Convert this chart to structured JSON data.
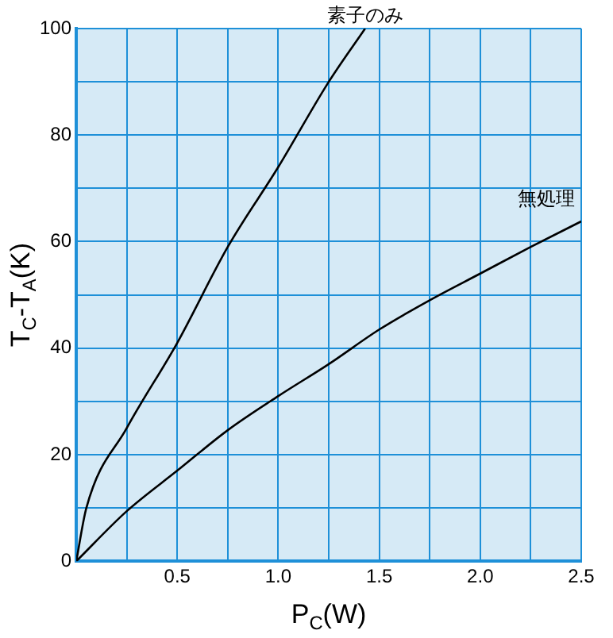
{
  "chart_data": {
    "type": "line",
    "xlabel": "P$_{C}$(W)",
    "ylabel": "T$_{C}$-T$_{A}$(K)",
    "xlim": [
      0,
      2.5
    ],
    "ylim": [
      0,
      100
    ],
    "xticks": [
      {
        "value": 0,
        "label": null
      },
      {
        "value": 0.25,
        "label": null
      },
      0.5,
      {
        "value": 0.75,
        "label": null
      },
      {
        "value": 1,
        "label": "1.0"
      },
      {
        "value": 1.25,
        "label": null
      },
      1.5,
      {
        "value": 1.75,
        "label": null
      },
      {
        "value": 2,
        "label": "2.0"
      },
      {
        "value": 2.25,
        "label": null
      },
      2.5
    ],
    "yticks": [
      0,
      {
        "value": 10,
        "label": null
      },
      20,
      {
        "value": 30,
        "label": null
      },
      40,
      {
        "value": 50,
        "label": null
      },
      60,
      {
        "value": 70,
        "label": null
      },
      80,
      {
        "value": 90,
        "label": null
      },
      100
    ],
    "grid": true,
    "legend": false,
    "marker": "none",
    "line_style": "solid",
    "series": [
      {
        "color": "#000000",
        "x": [
          0,
          0.05,
          0.25,
          0.5,
          0.75,
          1,
          1.25,
          1.43
        ],
        "values": [
          0,
          10,
          25,
          41,
          59,
          74,
          90,
          100
        ]
      },
      {
        "color": "#000000",
        "x": [
          0,
          0.25,
          0.5,
          0.75,
          1,
          1.25,
          1.5,
          1.75,
          2,
          2.25,
          2.5
        ],
        "values": [
          0,
          9.4,
          17,
          24.6,
          31,
          37,
          43.5,
          49,
          54,
          59,
          63.8
        ]
      }
    ],
    "annotations": [
      {
        "text": "素子のみ",
        "x": 1.43,
        "y": 100
      },
      {
        "text": "無処理",
        "x": 2.5,
        "y": 63.8
      }
    ]
  }
}
